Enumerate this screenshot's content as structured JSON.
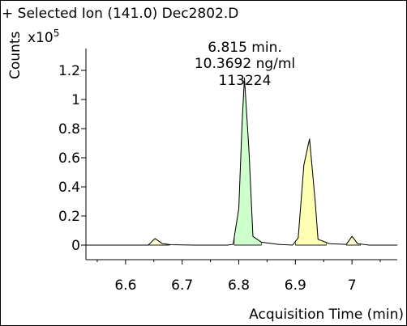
{
  "chart_data": {
    "type": "line",
    "title": "+ Selected Ion (141.0) Dec2802.D",
    "ylabel": "Counts",
    "y_multiplier": "x10",
    "y_multiplier_exp": "5",
    "xlabel": "Acquisition Time (min)",
    "xlim": [
      6.53,
      7.08
    ],
    "ylim": [
      -0.1,
      1.35
    ],
    "xticks": [
      "6.6",
      "6.7",
      "6.8",
      "6.9",
      "7"
    ],
    "xtick_values": [
      6.6,
      6.7,
      6.8,
      6.9,
      7.0
    ],
    "yticks": [
      "0",
      "0.2",
      "0.4",
      "0.6",
      "0.8",
      "1",
      "1.2"
    ],
    "ytick_values": [
      0,
      0.2,
      0.4,
      0.6,
      0.8,
      1.0,
      1.2
    ],
    "annotation": [
      "6.815 min.",
      "10.3692 ng/ml",
      "113224"
    ],
    "series": [
      {
        "values": [
          {
            "x": 6.53,
            "y": 0.0
          },
          {
            "x": 6.62,
            "y": 0.0
          },
          {
            "x": 6.64,
            "y": 0.0
          },
          {
            "x": 6.652,
            "y": 0.045
          },
          {
            "x": 6.665,
            "y": 0.01
          },
          {
            "x": 6.68,
            "y": 0.003
          },
          {
            "x": 6.72,
            "y": 0.0
          },
          {
            "x": 6.78,
            "y": 0.0
          },
          {
            "x": 6.79,
            "y": 0.005
          },
          {
            "x": 6.8,
            "y": 0.25
          },
          {
            "x": 6.806,
            "y": 0.85
          },
          {
            "x": 6.81,
            "y": 1.15
          },
          {
            "x": 6.818,
            "y": 0.65
          },
          {
            "x": 6.825,
            "y": 0.06
          },
          {
            "x": 6.84,
            "y": 0.02
          },
          {
            "x": 6.87,
            "y": 0.005
          },
          {
            "x": 6.895,
            "y": 0.0
          },
          {
            "x": 6.905,
            "y": 0.05
          },
          {
            "x": 6.915,
            "y": 0.55
          },
          {
            "x": 6.925,
            "y": 0.73
          },
          {
            "x": 6.935,
            "y": 0.3
          },
          {
            "x": 6.94,
            "y": 0.04
          },
          {
            "x": 6.96,
            "y": 0.01
          },
          {
            "x": 6.99,
            "y": 0.005
          },
          {
            "x": 7.0,
            "y": 0.06
          },
          {
            "x": 7.01,
            "y": 0.01
          },
          {
            "x": 7.03,
            "y": 0.0
          },
          {
            "x": 7.08,
            "y": 0.0
          }
        ]
      }
    ],
    "filled_peaks": [
      {
        "x_start": 6.638,
        "x_end": 6.678,
        "color": "#ffffcc"
      },
      {
        "x_start": 6.792,
        "x_end": 6.84,
        "color": "#ccffcc"
      },
      {
        "x_start": 6.9,
        "x_end": 6.955,
        "color": "#ffffb4"
      },
      {
        "x_start": 6.99,
        "x_end": 7.015,
        "color": "#ffffcc"
      }
    ],
    "grid": false
  }
}
